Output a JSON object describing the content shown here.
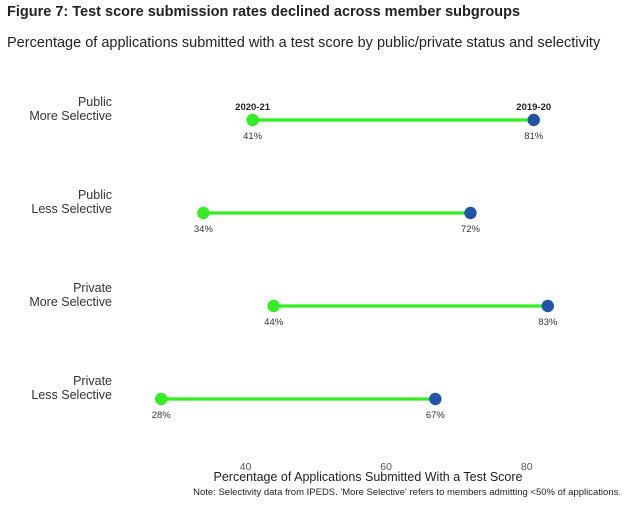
{
  "header": {
    "title": "Figure 7: Test score submission rates declined across member subgroups",
    "subtitle": "Percentage of applications submitted with a test score by public/private status and selectivity"
  },
  "chart_data": {
    "type": "dumbbell",
    "xlabel": "Percentage of Applications Submitted With a Test Score",
    "xlim": [
      20,
      90
    ],
    "xticks": [
      40,
      60,
      80
    ],
    "grid": false,
    "series_names": [
      "2020-21",
      "2019-20"
    ],
    "series_colors": [
      "#33ee22",
      "#1f56a8"
    ],
    "categories": [
      {
        "line1": "Public",
        "line2": "More Selective",
        "v2021": 41,
        "v2020": 81,
        "label2021": "41%",
        "label2020": "81%"
      },
      {
        "line1": "Public",
        "line2": "Less Selective",
        "v2021": 34,
        "v2020": 72,
        "label2021": "34%",
        "label2020": "72%"
      },
      {
        "line1": "Private",
        "line2": "More Selective",
        "v2021": 44,
        "v2020": 83,
        "label2021": "44%",
        "label2020": "83%"
      },
      {
        "line1": "Private",
        "line2": "Less Selective",
        "v2021": 28,
        "v2020": 67,
        "label2021": "28%",
        "label2020": "67%"
      }
    ]
  },
  "footer": {
    "note": "Note: Selectivity data from IPEDS. 'More Selective' refers to members admitting <50% of applications."
  }
}
